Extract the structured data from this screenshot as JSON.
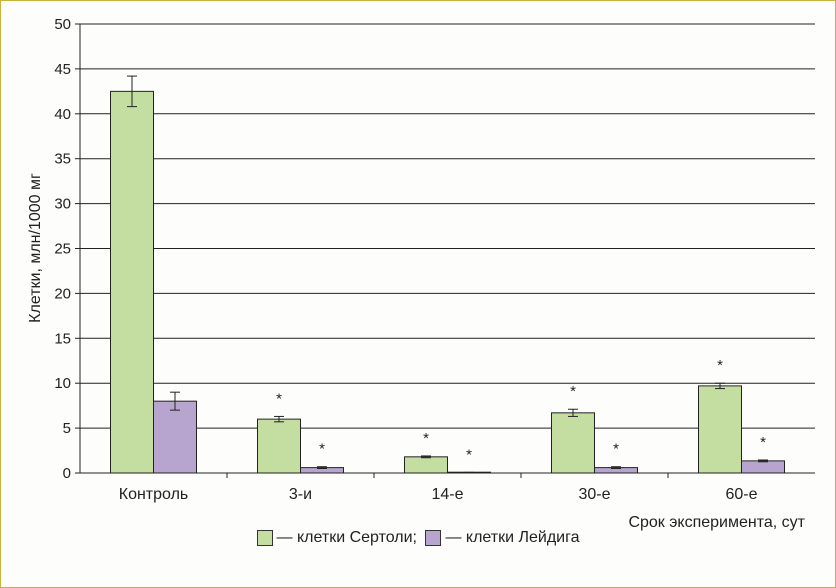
{
  "chart_data": {
    "type": "bar",
    "title": "",
    "ylabel": "Клетки, млн/1000 мг",
    "xlabel": "Срок эксперимента, сут",
    "ylim": [
      0,
      50
    ],
    "yticks": [
      0,
      5,
      10,
      15,
      20,
      25,
      30,
      35,
      40,
      45,
      50
    ],
    "categories": [
      "Контроль",
      "3-и",
      "14-е",
      "30-е",
      "60-е"
    ],
    "grid": true,
    "legend_position": "bottom",
    "series": [
      {
        "name": "— клетки Сертоли;",
        "color": "#c3dea0",
        "values": [
          42.5,
          6.0,
          1.8,
          6.7,
          9.7
        ],
        "errors": [
          1.7,
          0.3,
          0.1,
          0.4,
          0.3
        ],
        "markers": [
          "",
          "*",
          "*",
          "*",
          "*"
        ]
      },
      {
        "name": "— клетки Лейдига",
        "color": "#b8a5cf",
        "values": [
          8.0,
          0.6,
          0.05,
          0.6,
          1.35
        ],
        "errors": [
          1.0,
          0.1,
          0.02,
          0.1,
          0.1
        ],
        "markers": [
          "",
          "*",
          "*",
          "*",
          "*"
        ]
      }
    ]
  }
}
